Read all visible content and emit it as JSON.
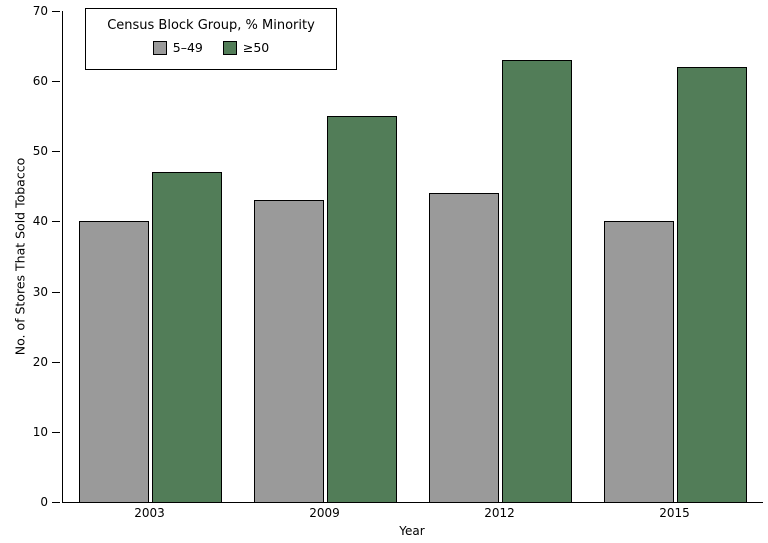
{
  "chart_data": {
    "type": "bar",
    "title": "",
    "categories": [
      "2003",
      "2009",
      "2012",
      "2015"
    ],
    "series": [
      {
        "name": "5–49",
        "color": "#9A9A9A",
        "values": [
          40,
          43,
          44,
          40
        ]
      },
      {
        "name": "≥50",
        "color": "#527D58",
        "values": [
          47,
          55,
          63,
          62
        ]
      }
    ],
    "xlabel": "Year",
    "ylabel": "No. of Stores That Sold Tobacco",
    "ylim": [
      0,
      70
    ],
    "y_ticks": [
      0,
      10,
      20,
      30,
      40,
      50,
      60,
      70
    ],
    "legend": {
      "title": "Census Block Group, % Minority",
      "position": "top-left"
    },
    "grid": false,
    "axis_color": "#000000",
    "bar_border_color": "#000000",
    "background": "#FFFFFF"
  }
}
